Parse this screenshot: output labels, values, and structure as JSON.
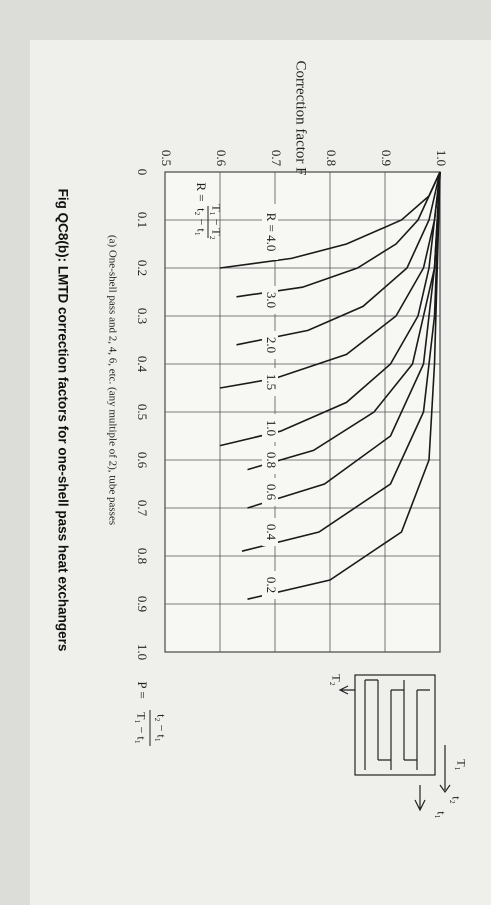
{
  "chart_data": {
    "type": "line",
    "title": "Correction factor F",
    "x_label": "P",
    "xlim": [
      0,
      1
    ],
    "xticks": [
      0,
      0.1,
      0.2,
      0.3,
      0.4,
      0.5,
      0.6,
      0.7,
      0.8,
      0.9,
      {
        "value": 1,
        "label": "1.0"
      }
    ],
    "ylim": [
      0.5,
      1
    ],
    "yticks": [
      0.5,
      0.6,
      0.7,
      0.8,
      0.9,
      {
        "value": 1,
        "label": "1.0"
      }
    ],
    "grid": true,
    "color": "#1a1a1a",
    "series": [
      {
        "name": "R = 4.0",
        "x": [
          0,
          0.05,
          0.1,
          0.15,
          0.18,
          0.2
        ],
        "values": [
          1,
          0.98,
          0.93,
          0.83,
          0.73,
          0.6
        ]
      },
      {
        "name": "3.0",
        "x": [
          0,
          0.1,
          0.15,
          0.2,
          0.24,
          0.26
        ],
        "values": [
          1,
          0.96,
          0.92,
          0.85,
          0.75,
          0.63
        ]
      },
      {
        "name": "2.0",
        "x": [
          0,
          0.1,
          0.2,
          0.28,
          0.33,
          0.36
        ],
        "values": [
          1,
          0.98,
          0.94,
          0.86,
          0.76,
          0.63
        ]
      },
      {
        "name": "1.5",
        "x": [
          0,
          0.1,
          0.2,
          0.3,
          0.38,
          0.43,
          0.45
        ],
        "values": [
          1,
          0.99,
          0.97,
          0.92,
          0.83,
          0.7,
          0.6
        ]
      },
      {
        "name": "1.0",
        "x": [
          0,
          0.2,
          0.3,
          0.4,
          0.48,
          0.54,
          0.57
        ],
        "values": [
          1,
          0.98,
          0.96,
          0.91,
          0.83,
          0.71,
          0.6
        ]
      },
      {
        "name": "0.8",
        "x": [
          0,
          0.2,
          0.4,
          0.5,
          0.58,
          0.62
        ],
        "values": [
          1,
          0.99,
          0.95,
          0.88,
          0.77,
          0.65
        ]
      },
      {
        "name": "0.6",
        "x": [
          0,
          0.2,
          0.4,
          0.55,
          0.65,
          0.7
        ],
        "values": [
          1,
          0.99,
          0.97,
          0.91,
          0.79,
          0.65
        ]
      },
      {
        "name": "0.4",
        "x": [
          0,
          0.3,
          0.5,
          0.65,
          0.75,
          0.79
        ],
        "values": [
          1,
          0.99,
          0.97,
          0.91,
          0.78,
          0.64
        ]
      },
      {
        "name": "0.2",
        "x": [
          0,
          0.4,
          0.6,
          0.75,
          0.85,
          0.89
        ],
        "values": [
          1,
          0.99,
          0.98,
          0.93,
          0.8,
          0.65
        ]
      }
    ],
    "annotations": {
      "r_formula": {
        "lhs": "R =",
        "numerator": "T₁ − T₂",
        "denominator": "t₂ − t₁"
      },
      "p_formula": {
        "lhs": "P =",
        "numerator": "t₂ − t₁",
        "denominator": "T₁ − t₁"
      },
      "diagram": {
        "T1": "T₁",
        "T2": "T₂",
        "t1": "t₁",
        "t2": "t₂"
      }
    }
  },
  "caption": "(a) One-shell pass and 2, 4, 6, etc. (any multiple of 2), tube passes",
  "figure_caption": "Fig QC8(b): LMTD correction factors for one-shell pass heat exchangers"
}
